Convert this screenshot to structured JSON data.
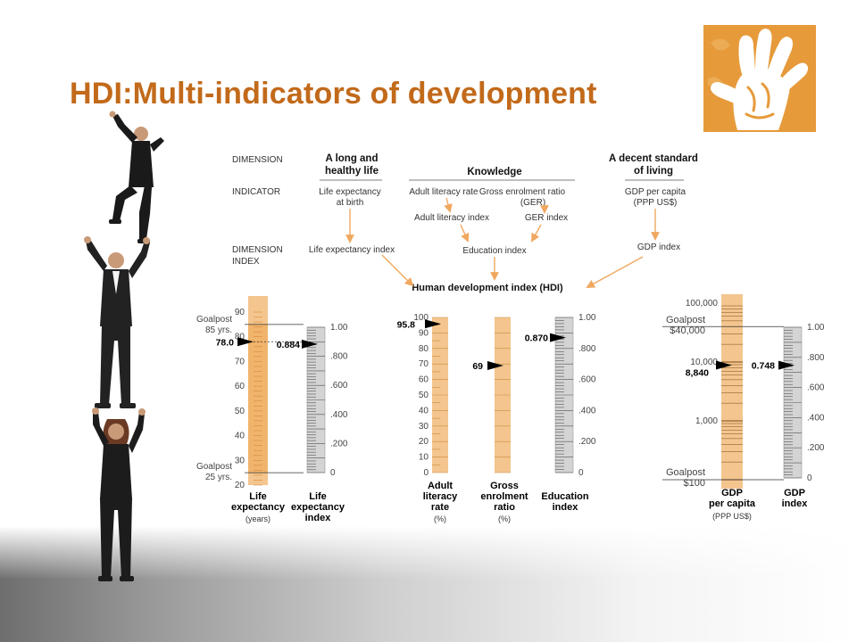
{
  "slide": {
    "title": "HDI:Multi-indicators of development"
  },
  "diagram": {
    "row_labels": [
      "DIMENSION",
      "INDICATOR",
      "DIMENSION",
      "INDEX"
    ],
    "dimensions": [
      "A long and",
      "healthy life",
      "Knowledge",
      "A decent standard",
      "of living"
    ],
    "indicators": {
      "life1": "Life expectancy",
      "life2": "at birth",
      "literacy": "Adult literacy rate",
      "ger1": "Gross enrolment ratio",
      "ger2": "(GER)",
      "gdp1": "GDP per capita",
      "gdp2": "(PPP US$)"
    },
    "indices": {
      "adult_literacy": "Adult literacy index",
      "ger": "GER index",
      "life": "Life expectancy index",
      "education": "Education index",
      "gdp": "GDP index"
    },
    "hdi_label": "Human development index (HDI)",
    "arrow_color": "#f0a860"
  },
  "scales": {
    "life": {
      "goalpost_top": [
        "Goalpost",
        "85 yrs."
      ],
      "goalpost_bottom": [
        "Goalpost",
        "25 yrs."
      ],
      "ticks": [
        "90",
        "80",
        "70",
        "60",
        "50",
        "40",
        "30",
        "20"
      ],
      "value": "78.0",
      "value_num": 78.0,
      "label": [
        "Life",
        "expectancy"
      ],
      "unit": "(years)"
    },
    "life_index": {
      "ticks": [
        "1.00",
        ".800",
        ".600",
        ".400",
        ".200",
        "0"
      ],
      "value": "0.884",
      "value_num": 0.884,
      "label": [
        "Life",
        "expectancy",
        "index"
      ]
    },
    "literacy": {
      "ticks": [
        "100",
        "90",
        "80",
        "70",
        "60",
        "50",
        "40",
        "30",
        "20",
        "10",
        "0"
      ],
      "value": "95.8",
      "value_num": 95.8,
      "label": [
        "Adult",
        "literacy",
        "rate"
      ],
      "unit": "(%)"
    },
    "ger": {
      "value": "69",
      "value_num": 69,
      "label": [
        "Gross",
        "enrolment",
        "ratio"
      ],
      "unit": "(%)"
    },
    "education": {
      "ticks": [
        "1.00",
        ".800",
        ".600",
        ".400",
        ".200",
        "0"
      ],
      "value": "0.870",
      "value_num": 0.87,
      "label": [
        "Education",
        "index"
      ]
    },
    "gdp": {
      "ticks": [
        "100,000",
        "10,000",
        "1,000"
      ],
      "goalpost_top": [
        "Goalpost",
        "$40,000"
      ],
      "goalpost_bottom": [
        "Goalpost",
        "$100"
      ],
      "value": "8,840",
      "value_num": 8840,
      "label": [
        "GDP",
        "per capita"
      ],
      "unit": "(PPP US$)"
    },
    "gdp_index": {
      "ticks": [
        "1.00",
        ".800",
        ".600",
        ".400",
        ".200",
        "0"
      ],
      "value": "0.748",
      "value_num": 0.748,
      "label": [
        "GDP",
        "index"
      ]
    }
  },
  "colors": {
    "title": "#c26a1a",
    "logo_bg": "#e69a3a",
    "bar_orange": "#f4c58e",
    "bar_gray": "#d4d4d4"
  }
}
